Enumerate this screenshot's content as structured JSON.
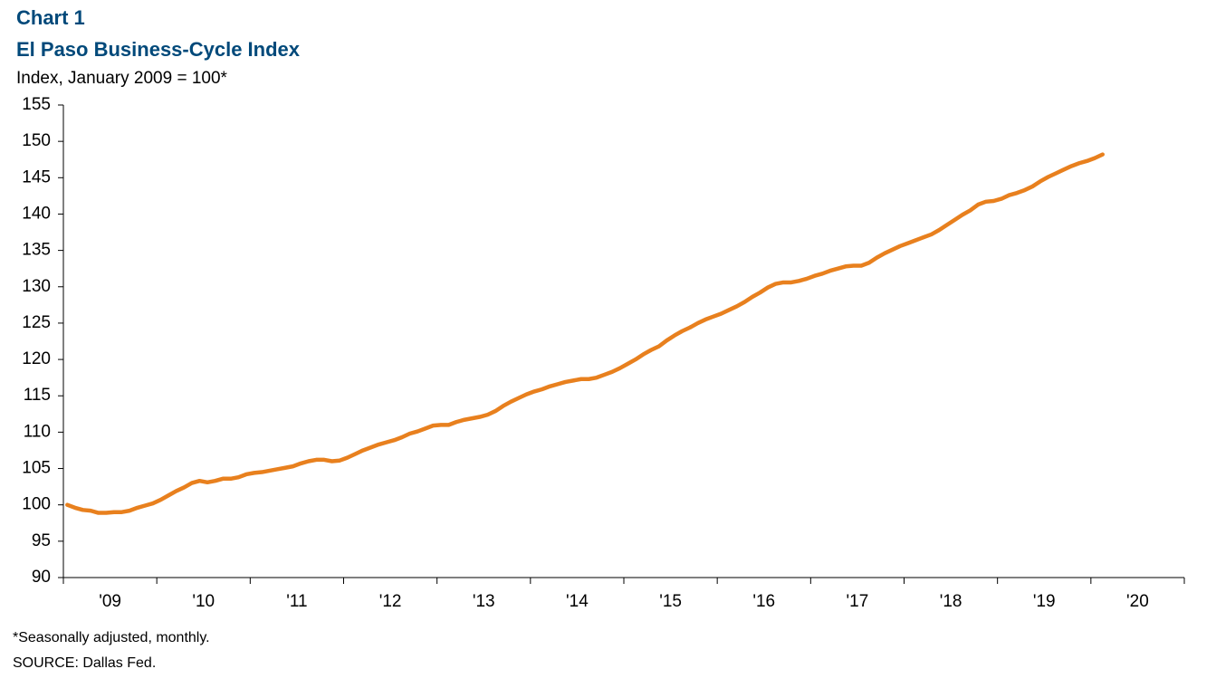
{
  "chart_data": {
    "type": "line",
    "title": "Chart 1",
    "subtitle": "El Paso Business-Cycle Index",
    "y_label": "Index, January 2009 = 100*",
    "notes": [
      "*Seasonally adjusted, monthly.",
      "SOURCE: Dallas Fed."
    ],
    "color": "#e8801e",
    "x": [
      2009.042,
      2009.125,
      2009.208,
      2009.292,
      2009.375,
      2009.458,
      2009.542,
      2009.625,
      2009.708,
      2009.792,
      2009.875,
      2009.958,
      2010.042,
      2010.125,
      2010.208,
      2010.292,
      2010.375,
      2010.458,
      2010.542,
      2010.625,
      2010.708,
      2010.792,
      2010.875,
      2010.958,
      2011.042,
      2011.125,
      2011.208,
      2011.292,
      2011.375,
      2011.458,
      2011.542,
      2011.625,
      2011.708,
      2011.792,
      2011.875,
      2011.958,
      2012.042,
      2012.125,
      2012.208,
      2012.292,
      2012.375,
      2012.458,
      2012.542,
      2012.625,
      2012.708,
      2012.792,
      2012.875,
      2012.958,
      2013.042,
      2013.125,
      2013.208,
      2013.292,
      2013.375,
      2013.458,
      2013.542,
      2013.625,
      2013.708,
      2013.792,
      2013.875,
      2013.958,
      2014.042,
      2014.125,
      2014.208,
      2014.292,
      2014.375,
      2014.458,
      2014.542,
      2014.625,
      2014.708,
      2014.792,
      2014.875,
      2014.958,
      2015.042,
      2015.125,
      2015.208,
      2015.292,
      2015.375,
      2015.458,
      2015.542,
      2015.625,
      2015.708,
      2015.792,
      2015.875,
      2015.958,
      2016.042,
      2016.125,
      2016.208,
      2016.292,
      2016.375,
      2016.458,
      2016.542,
      2016.625,
      2016.708,
      2016.792,
      2016.875,
      2016.958,
      2017.042,
      2017.125,
      2017.208,
      2017.292,
      2017.375,
      2017.458,
      2017.542,
      2017.625,
      2017.708,
      2017.792,
      2017.875,
      2017.958,
      2018.042,
      2018.125,
      2018.208,
      2018.292,
      2018.375,
      2018.458,
      2018.542,
      2018.625,
      2018.708,
      2018.792,
      2018.875,
      2018.958,
      2019.042,
      2019.125,
      2019.208,
      2019.292,
      2019.375,
      2019.458,
      2019.542,
      2019.625,
      2019.708,
      2019.792,
      2019.875,
      2019.958,
      2020.042,
      2020.125
    ],
    "values": [
      100.0,
      99.6,
      99.3,
      99.2,
      98.9,
      98.9,
      99.0,
      99.0,
      99.2,
      99.6,
      99.9,
      100.2,
      100.7,
      101.3,
      101.9,
      102.4,
      103.0,
      103.3,
      103.1,
      103.3,
      103.6,
      103.6,
      103.8,
      104.2,
      104.4,
      104.5,
      104.7,
      104.9,
      105.1,
      105.3,
      105.7,
      106.0,
      106.2,
      106.2,
      106.0,
      106.1,
      106.5,
      107.0,
      107.5,
      107.9,
      108.3,
      108.6,
      108.9,
      109.3,
      109.8,
      110.1,
      110.5,
      110.9,
      111.0,
      111.0,
      111.4,
      111.7,
      111.9,
      112.1,
      112.4,
      112.9,
      113.6,
      114.2,
      114.7,
      115.2,
      115.6,
      115.9,
      116.3,
      116.6,
      116.9,
      117.1,
      117.3,
      117.3,
      117.5,
      117.9,
      118.3,
      118.8,
      119.4,
      120.0,
      120.7,
      121.3,
      121.8,
      122.6,
      123.3,
      123.9,
      124.4,
      125.0,
      125.5,
      125.9,
      126.3,
      126.8,
      127.3,
      127.9,
      128.6,
      129.2,
      129.9,
      130.4,
      130.6,
      130.6,
      130.8,
      131.1,
      131.5,
      131.8,
      132.2,
      132.5,
      132.8,
      132.9,
      132.9,
      133.3,
      134.0,
      134.6,
      135.1,
      135.6,
      136.0,
      136.4,
      136.8,
      137.2,
      137.8,
      138.5,
      139.2,
      139.9,
      140.5,
      141.3,
      141.7,
      141.8,
      142.1,
      142.6,
      142.9,
      143.3,
      143.8,
      144.5,
      145.1,
      145.6,
      146.1,
      146.6,
      147.0,
      147.3,
      147.7,
      148.2
    ],
    "xlim": [
      2009,
      2021
    ],
    "xticks": [
      {
        "value": 2009.5,
        "label": "'09"
      },
      {
        "value": 2010.5,
        "label": "'10"
      },
      {
        "value": 2011.5,
        "label": "'11"
      },
      {
        "value": 2012.5,
        "label": "'12"
      },
      {
        "value": 2013.5,
        "label": "'13"
      },
      {
        "value": 2014.5,
        "label": "'14"
      },
      {
        "value": 2015.5,
        "label": "'15"
      },
      {
        "value": 2016.5,
        "label": "'16"
      },
      {
        "value": 2017.5,
        "label": "'17"
      },
      {
        "value": 2018.5,
        "label": "'18"
      },
      {
        "value": 2019.5,
        "label": "'19"
      },
      {
        "value": 2020.5,
        "label": "'20"
      }
    ],
    "xminorticks": [
      2009,
      2010,
      2011,
      2012,
      2013,
      2014,
      2015,
      2016,
      2017,
      2018,
      2019,
      2020,
      2021
    ],
    "ylim": [
      90,
      155
    ],
    "yticks": [
      90,
      95,
      100,
      105,
      110,
      115,
      120,
      125,
      130,
      135,
      140,
      145,
      150,
      155
    ],
    "grid": false
  }
}
